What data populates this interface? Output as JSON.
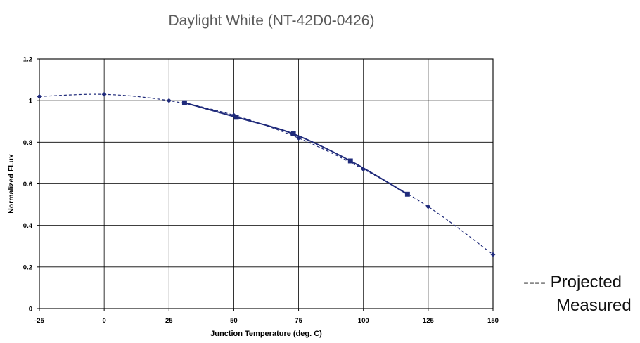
{
  "chart_data": {
    "type": "line",
    "title": "Daylight White (NT-42D0-0426)",
    "xlabel": "Junction Temperature (deg. C)",
    "ylabel": "Normalized FLux",
    "xlim": [
      -25,
      150
    ],
    "ylim": [
      0,
      1.2
    ],
    "xticks": [
      -25,
      0,
      25,
      50,
      75,
      100,
      125,
      150
    ],
    "yticks": [
      0,
      0.2,
      0.4,
      0.6,
      0.8,
      1,
      1.2
    ],
    "xtick_labels": [
      "-25",
      "0",
      "25",
      "50",
      "75",
      "100",
      "125",
      "150"
    ],
    "ytick_labels": [
      "0",
      "0.2",
      "0.4",
      "0.6",
      "0.8",
      "1",
      "1.2"
    ],
    "grid": true,
    "legend_position": "right-bottom",
    "series": [
      {
        "name": "Projected",
        "line_style": "dashed",
        "marker": "diamond",
        "color": "#1f2a7a",
        "x": [
          -25,
          0,
          25,
          50,
          75,
          100,
          125,
          150
        ],
        "y": [
          1.02,
          1.03,
          1.0,
          0.93,
          0.82,
          0.67,
          0.49,
          0.26
        ]
      },
      {
        "name": "Measured",
        "line_style": "solid",
        "marker": "square",
        "color": "#1f2a7a",
        "x": [
          31,
          51,
          73,
          95,
          117
        ],
        "y": [
          0.99,
          0.92,
          0.84,
          0.71,
          0.55
        ]
      }
    ]
  },
  "legend": {
    "projected": "---- Projected",
    "measured": "Measured"
  }
}
